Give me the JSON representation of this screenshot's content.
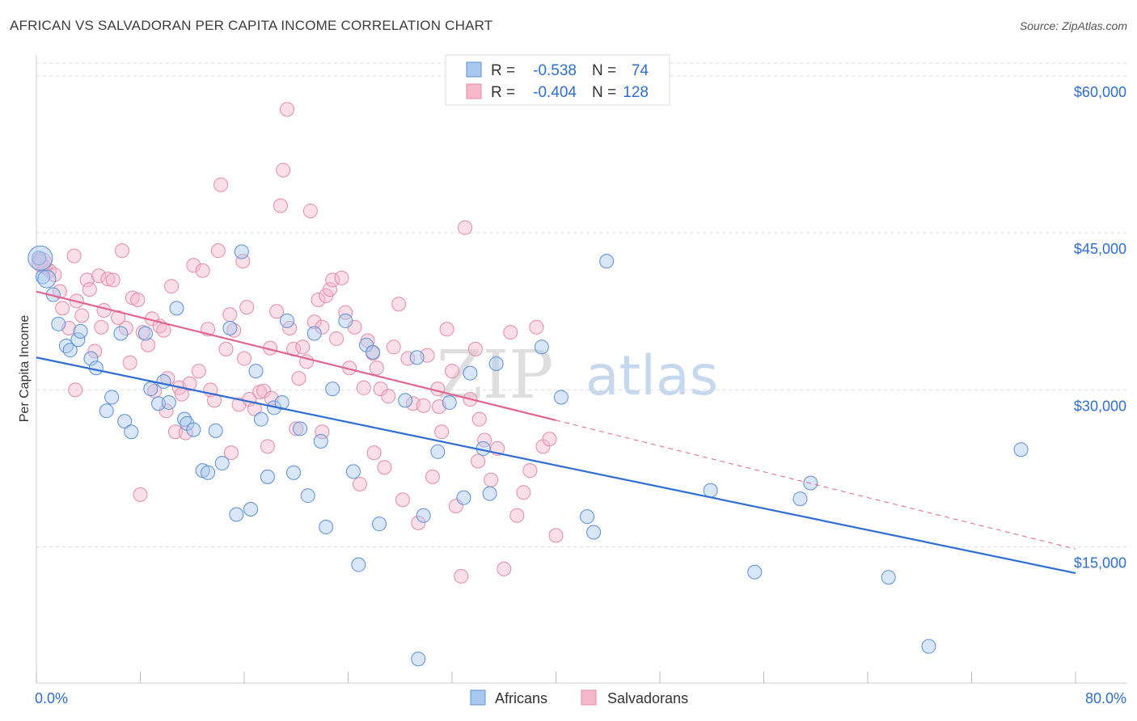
{
  "title": "AFRICAN VS SALVADORAN PER CAPITA INCOME CORRELATION CHART",
  "source": "Source: ZipAtlas.com",
  "watermark": {
    "zip": "ZIP",
    "atlas": "atlas"
  },
  "legend_box": {
    "rows": [
      {
        "r_label": "R =",
        "r_value": "-0.538",
        "n_label": "N =",
        "n_value": "74"
      },
      {
        "r_label": "R =",
        "r_value": "-0.404",
        "n_label": "N =",
        "n_value": "128"
      }
    ]
  },
  "colors": {
    "blue_fill": "#a9c8ee",
    "blue_stroke": "#5b8fd6",
    "blue_line": "#2f6ed1",
    "pink_fill": "#f5b8cb",
    "pink_stroke": "#e68aa8",
    "pink_line": "#e0668f",
    "value_text": "#2f6ed1",
    "grid": "#dddddd"
  },
  "chart_data": {
    "type": "scatter",
    "title": "AFRICAN VS SALVADORAN PER CAPITA INCOME CORRELATION CHART",
    "xlabel": "",
    "ylabel": "Per Capita Income",
    "xlim": [
      0,
      80
    ],
    "ylim": [
      2000,
      62000
    ],
    "x_tick_labels": [
      {
        "value": 0,
        "label": "0.0%"
      },
      {
        "value": 80,
        "label": "80.0%"
      }
    ],
    "y_tick_labels": [
      {
        "value": 15000,
        "label": "$15,000"
      },
      {
        "value": 30000,
        "label": "$30,000"
      },
      {
        "value": 45000,
        "label": "$45,000"
      },
      {
        "value": 60000,
        "label": "$60,000"
      }
    ],
    "legend": [
      "Africans",
      "Salvadorans"
    ],
    "series": [
      {
        "name": "Africans",
        "r": -0.538,
        "n": 74,
        "trend": {
          "x0": 0,
          "y0": 33100,
          "x1": 80,
          "y1": 12500,
          "solid_until": 80
        },
        "points": [
          [
            0.2,
            42600
          ],
          [
            0.5,
            40800
          ],
          [
            1.3,
            39100
          ],
          [
            1.7,
            36300
          ],
          [
            2.3,
            34200
          ],
          [
            2.6,
            33800
          ],
          [
            3.2,
            34800
          ],
          [
            3.4,
            35600
          ],
          [
            4.2,
            33000
          ],
          [
            4.6,
            32100
          ],
          [
            5.4,
            28000
          ],
          [
            5.8,
            29300
          ],
          [
            6.8,
            27000
          ],
          [
            7.3,
            26000
          ],
          [
            6.5,
            35400
          ],
          [
            8.4,
            35400
          ],
          [
            8.8,
            30100
          ],
          [
            9.4,
            28700
          ],
          [
            9.8,
            30800
          ],
          [
            10.2,
            28800
          ],
          [
            10.8,
            37800
          ],
          [
            11.4,
            27200
          ],
          [
            11.6,
            26800
          ],
          [
            12.1,
            26200
          ],
          [
            12.8,
            22300
          ],
          [
            13.2,
            22100
          ],
          [
            13.8,
            26100
          ],
          [
            14.3,
            23000
          ],
          [
            14.9,
            35900
          ],
          [
            15.4,
            18100
          ],
          [
            15.8,
            43200
          ],
          [
            16.5,
            18600
          ],
          [
            16.9,
            31800
          ],
          [
            17.3,
            27200
          ],
          [
            17.8,
            21700
          ],
          [
            18.3,
            28300
          ],
          [
            18.9,
            28800
          ],
          [
            19.3,
            36600
          ],
          [
            19.8,
            22100
          ],
          [
            20.3,
            26300
          ],
          [
            20.9,
            19900
          ],
          [
            21.4,
            35400
          ],
          [
            21.9,
            25100
          ],
          [
            22.3,
            16900
          ],
          [
            22.8,
            30100
          ],
          [
            23.8,
            36600
          ],
          [
            24.4,
            22200
          ],
          [
            24.8,
            13300
          ],
          [
            25.4,
            34300
          ],
          [
            25.9,
            33600
          ],
          [
            26.4,
            17200
          ],
          [
            28.4,
            29000
          ],
          [
            29.3,
            33100
          ],
          [
            29.8,
            18000
          ],
          [
            30.9,
            24100
          ],
          [
            31.8,
            28800
          ],
          [
            32.9,
            19700
          ],
          [
            33.4,
            31600
          ],
          [
            34.4,
            24400
          ],
          [
            34.9,
            20100
          ],
          [
            35.4,
            32500
          ],
          [
            38.9,
            34100
          ],
          [
            40.4,
            29300
          ],
          [
            42.4,
            17900
          ],
          [
            42.9,
            16400
          ],
          [
            43.9,
            42300
          ],
          [
            29.4,
            4300
          ],
          [
            51.9,
            20400
          ],
          [
            55.3,
            12600
          ],
          [
            58.8,
            19600
          ],
          [
            59.6,
            21100
          ],
          [
            65.6,
            12100
          ],
          [
            68.7,
            5500
          ],
          [
            75.8,
            24300
          ]
        ]
      },
      {
        "name": "Salvadorans",
        "r": -0.404,
        "n": 128,
        "trend": {
          "x0": 0,
          "y0": 39400,
          "x1": 80,
          "y1": 14800,
          "solid_until": 40
        },
        "points": [
          [
            0.3,
            42300
          ],
          [
            0.7,
            41700
          ],
          [
            1.0,
            41400
          ],
          [
            1.4,
            41000
          ],
          [
            1.8,
            39400
          ],
          [
            2.0,
            37800
          ],
          [
            2.5,
            35900
          ],
          [
            2.9,
            42800
          ],
          [
            3.1,
            38500
          ],
          [
            3.5,
            37100
          ],
          [
            3.9,
            40500
          ],
          [
            4.1,
            39600
          ],
          [
            4.5,
            33700
          ],
          [
            4.8,
            40900
          ],
          [
            5.2,
            37600
          ],
          [
            5.5,
            40600
          ],
          [
            5.9,
            40500
          ],
          [
            6.3,
            36900
          ],
          [
            6.6,
            43300
          ],
          [
            6.9,
            35900
          ],
          [
            7.2,
            32600
          ],
          [
            7.4,
            38800
          ],
          [
            7.8,
            38600
          ],
          [
            8.2,
            35500
          ],
          [
            8.6,
            34300
          ],
          [
            8.9,
            36800
          ],
          [
            9.1,
            29900
          ],
          [
            9.5,
            36100
          ],
          [
            9.8,
            35700
          ],
          [
            10.1,
            31100
          ],
          [
            10.4,
            39900
          ],
          [
            10.7,
            26000
          ],
          [
            11.0,
            30200
          ],
          [
            11.2,
            29600
          ],
          [
            11.5,
            25900
          ],
          [
            11.8,
            30600
          ],
          [
            12.1,
            41900
          ],
          [
            12.5,
            31800
          ],
          [
            12.8,
            41400
          ],
          [
            13.2,
            35800
          ],
          [
            13.4,
            30000
          ],
          [
            13.7,
            29000
          ],
          [
            14.0,
            43300
          ],
          [
            14.2,
            49600
          ],
          [
            14.6,
            33900
          ],
          [
            14.9,
            37200
          ],
          [
            15.2,
            35700
          ],
          [
            15.6,
            28600
          ],
          [
            15.9,
            42300
          ],
          [
            16.2,
            37900
          ],
          [
            16.4,
            29100
          ],
          [
            16.8,
            28200
          ],
          [
            17.2,
            29800
          ],
          [
            17.5,
            29900
          ],
          [
            17.8,
            24600
          ],
          [
            18.1,
            29200
          ],
          [
            18.5,
            37500
          ],
          [
            18.8,
            47600
          ],
          [
            19.0,
            51000
          ],
          [
            19.3,
            56800
          ],
          [
            19.5,
            35900
          ],
          [
            19.8,
            33900
          ],
          [
            20.0,
            26300
          ],
          [
            20.2,
            31100
          ],
          [
            20.5,
            34100
          ],
          [
            20.8,
            32700
          ],
          [
            21.1,
            47100
          ],
          [
            21.4,
            36500
          ],
          [
            21.7,
            38600
          ],
          [
            22.0,
            36000
          ],
          [
            22.3,
            39000
          ],
          [
            22.6,
            39600
          ],
          [
            22.8,
            40500
          ],
          [
            23.1,
            34900
          ],
          [
            23.5,
            40700
          ],
          [
            23.8,
            37400
          ],
          [
            24.1,
            32100
          ],
          [
            24.5,
            36000
          ],
          [
            24.9,
            21000
          ],
          [
            25.2,
            30200
          ],
          [
            25.5,
            34700
          ],
          [
            25.9,
            33500
          ],
          [
            26.2,
            32100
          ],
          [
            26.5,
            30100
          ],
          [
            26.8,
            22600
          ],
          [
            27.1,
            29400
          ],
          [
            27.5,
            34100
          ],
          [
            27.9,
            38200
          ],
          [
            28.2,
            19500
          ],
          [
            28.6,
            33000
          ],
          [
            29.0,
            28700
          ],
          [
            29.4,
            17300
          ],
          [
            29.8,
            28500
          ],
          [
            30.1,
            33300
          ],
          [
            30.5,
            21700
          ],
          [
            30.9,
            30100
          ],
          [
            31.2,
            26000
          ],
          [
            31.6,
            35800
          ],
          [
            32.0,
            31800
          ],
          [
            32.3,
            18900
          ],
          [
            32.7,
            12200
          ],
          [
            33.0,
            45500
          ],
          [
            33.4,
            29100
          ],
          [
            33.8,
            33900
          ],
          [
            34.1,
            27200
          ],
          [
            34.5,
            25200
          ],
          [
            35.0,
            21400
          ],
          [
            35.5,
            24400
          ],
          [
            36.0,
            12900
          ],
          [
            36.5,
            35500
          ],
          [
            37.0,
            18000
          ],
          [
            37.5,
            20200
          ],
          [
            38.0,
            22300
          ],
          [
            38.5,
            36000
          ],
          [
            39.0,
            24600
          ],
          [
            39.5,
            25300
          ],
          [
            40.0,
            16100
          ],
          [
            5.0,
            36000
          ],
          [
            8.0,
            20000
          ],
          [
            10.0,
            28000
          ],
          [
            15.0,
            24000
          ],
          [
            18.0,
            34000
          ],
          [
            22.0,
            26000
          ],
          [
            26.0,
            24000
          ],
          [
            31.0,
            28400
          ],
          [
            34.0,
            23200
          ],
          [
            3.0,
            30000
          ],
          [
            16.0,
            33000
          ]
        ]
      }
    ]
  },
  "bottom_legend": {
    "africans": "Africans",
    "salvadorans": "Salvadorans"
  }
}
